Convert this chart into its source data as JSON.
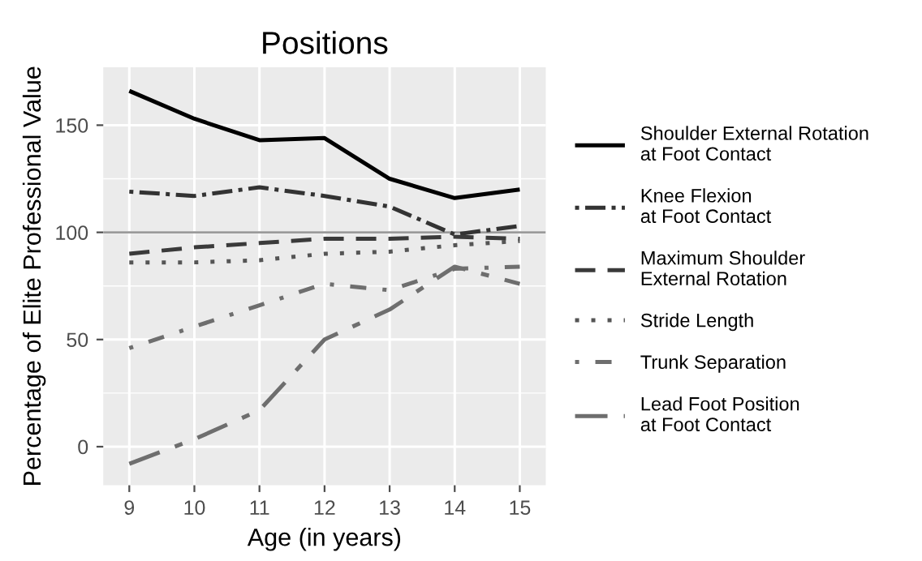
{
  "chart_data": {
    "type": "line",
    "title": "Positions",
    "xlabel": "Age (in years)",
    "ylabel": "Percentage of Elite Professional Value",
    "x": [
      9,
      10,
      11,
      12,
      13,
      14,
      15
    ],
    "series": [
      {
        "name": "Shoulder External Rotation\nat Foot Contact",
        "color": "#000000",
        "line_style": "solid",
        "values": [
          166,
          153,
          143,
          144,
          125,
          116,
          120
        ]
      },
      {
        "name": "Knee Flexion\nat Foot Contact",
        "color": "#333333",
        "line_style": "dashdot",
        "values": [
          119,
          117,
          121,
          117,
          112,
          99,
          103
        ]
      },
      {
        "name": "Maximum Shoulder\nExternal Rotation",
        "color": "#3a3a3a",
        "line_style": "dashed",
        "values": [
          90,
          93,
          95,
          97,
          97,
          98,
          97
        ]
      },
      {
        "name": "Stride Length",
        "color": "#555555",
        "line_style": "dotted",
        "values": [
          86,
          86,
          87,
          90,
          91,
          94,
          96
        ]
      },
      {
        "name": "Trunk Separation",
        "color": "#6e6e6e",
        "line_style": "dotdash",
        "values": [
          46,
          56,
          66,
          76,
          73,
          83,
          84
        ]
      },
      {
        "name": "Lead Foot Position\nat Foot Contact",
        "color": "#6e6e6e",
        "line_style": "longdash",
        "values": [
          -8,
          3.5,
          17,
          50,
          64,
          84,
          76
        ]
      }
    ],
    "ref_lines": [
      {
        "axis": "y",
        "value": 100,
        "color": "#9a9a9a"
      }
    ],
    "xlim": [
      8.6,
      15.4
    ],
    "ylim": [
      -18,
      177
    ],
    "xticks": [
      9,
      10,
      11,
      12,
      13,
      14,
      15
    ],
    "yticks": [
      0,
      50,
      100,
      150
    ],
    "grid": true,
    "legend": "right"
  }
}
